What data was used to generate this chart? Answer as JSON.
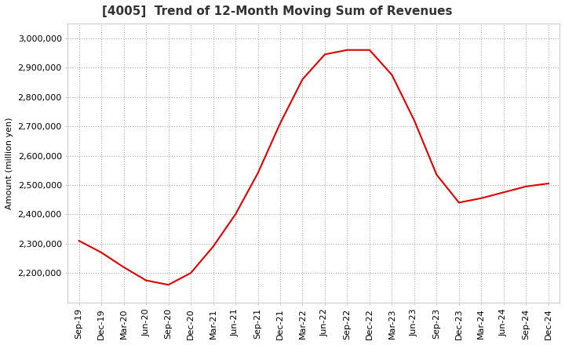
{
  "title": "[4005]  Trend of 12-Month Moving Sum of Revenues",
  "ylabel": "Amount (million yen)",
  "background_color": "#ffffff",
  "grid_color": "#aaaaaa",
  "line_color": "#dd0000",
  "title_fontsize": 11,
  "axis_fontsize": 8,
  "x_labels": [
    "Sep-19",
    "Dec-19",
    "Mar-20",
    "Jun-20",
    "Sep-20",
    "Dec-20",
    "Mar-21",
    "Jun-21",
    "Sep-21",
    "Dec-21",
    "Mar-22",
    "Jun-22",
    "Sep-22",
    "Dec-22",
    "Mar-23",
    "Jun-23",
    "Sep-23",
    "Dec-23",
    "Mar-24",
    "Jun-24",
    "Sep-24",
    "Dec-24"
  ],
  "y_values": [
    2310000,
    2270000,
    2220000,
    2175000,
    2160000,
    2200000,
    2290000,
    2400000,
    2540000,
    2710000,
    2860000,
    2945000,
    2960000,
    2960000,
    2875000,
    2720000,
    2535000,
    2440000,
    2455000,
    2475000,
    2495000,
    2505000
  ],
  "ylim": [
    2100000,
    3050000
  ],
  "yticks": [
    2200000,
    2300000,
    2400000,
    2500000,
    2600000,
    2700000,
    2800000,
    2900000,
    3000000
  ]
}
